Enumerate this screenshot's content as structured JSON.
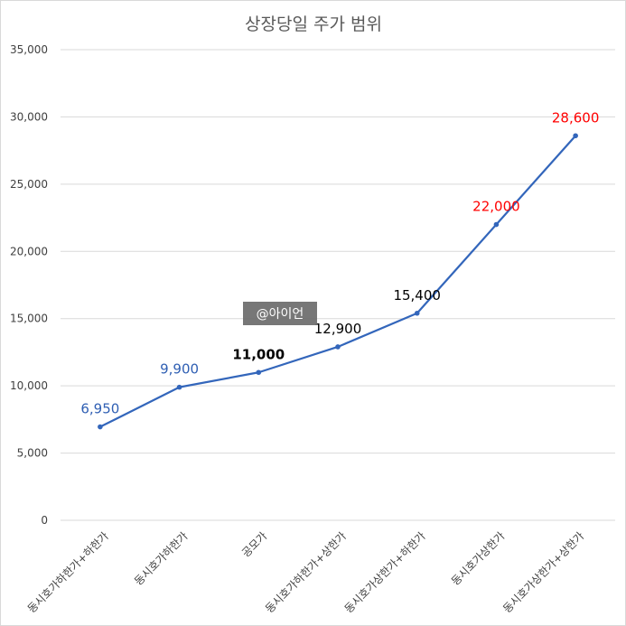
{
  "chart_data": {
    "type": "line",
    "title": "상장당일 주가 범위",
    "categories": [
      "동시호가하한가+하한가",
      "동시호가하한가",
      "공모가",
      "동시호가하한가+상한가",
      "동시호가상한가+하한가",
      "동시호가상한가",
      "동시호가상한가+상한가"
    ],
    "series": [
      {
        "values": [
          6950,
          9900,
          11000,
          12900,
          15400,
          22000,
          28600
        ]
      }
    ],
    "data_labels": [
      "6,950",
      "9,900",
      "11,000",
      "12,900",
      "15,400",
      "22,000",
      "28,600"
    ],
    "label_colors": [
      "#2f5fb3",
      "#2f5fb3",
      "#000000",
      "#000000",
      "#000000",
      "#ff0000",
      "#ff0000"
    ],
    "label_bold": [
      false,
      false,
      true,
      false,
      false,
      false,
      false
    ],
    "line_color": "#3366bb",
    "ylim": [
      0,
      35000
    ],
    "yticks": [
      0,
      5000,
      10000,
      15000,
      20000,
      25000,
      30000,
      35000
    ],
    "ytick_labels": [
      "0",
      "5,000",
      "10,000",
      "15,000",
      "20,000",
      "25,000",
      "30,000",
      "35,000"
    ],
    "grid": true,
    "legend": "none"
  },
  "watermark": {
    "text": "@아이언"
  }
}
